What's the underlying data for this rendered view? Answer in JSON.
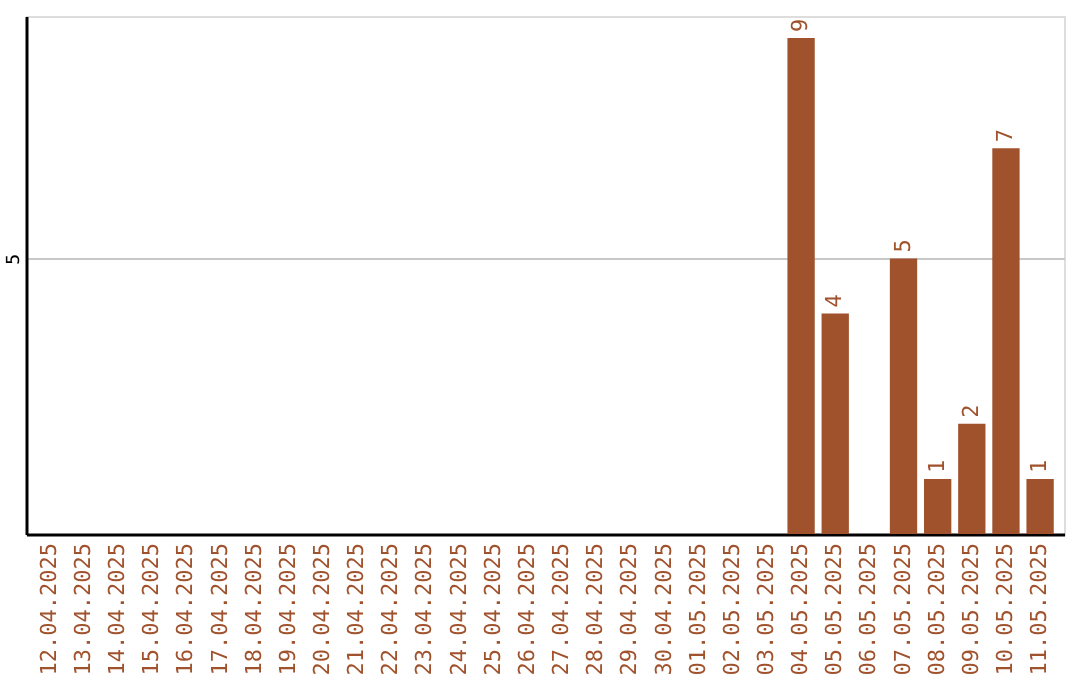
{
  "chart_data": {
    "type": "bar",
    "categories": [
      "12.04.2025",
      "13.04.2025",
      "14.04.2025",
      "15.04.2025",
      "16.04.2025",
      "17.04.2025",
      "18.04.2025",
      "19.04.2025",
      "20.04.2025",
      "21.04.2025",
      "22.04.2025",
      "23.04.2025",
      "24.04.2025",
      "25.04.2025",
      "26.04.2025",
      "27.04.2025",
      "28.04.2025",
      "29.04.2025",
      "30.04.2025",
      "01.05.2025",
      "02.05.2025",
      "03.05.2025",
      "04.05.2025",
      "05.05.2025",
      "06.05.2025",
      "07.05.2025",
      "08.05.2025",
      "09.05.2025",
      "10.05.2025",
      "11.05.2025"
    ],
    "values": [
      null,
      null,
      null,
      null,
      null,
      null,
      null,
      null,
      null,
      null,
      null,
      null,
      null,
      null,
      null,
      null,
      null,
      null,
      null,
      null,
      null,
      null,
      9,
      4,
      null,
      5,
      1,
      2,
      7,
      1
    ],
    "color": "#a0522d",
    "ylim": [
      0,
      9.4
    ],
    "yticks": [
      5
    ],
    "grid": "y",
    "data_labels": true
  }
}
